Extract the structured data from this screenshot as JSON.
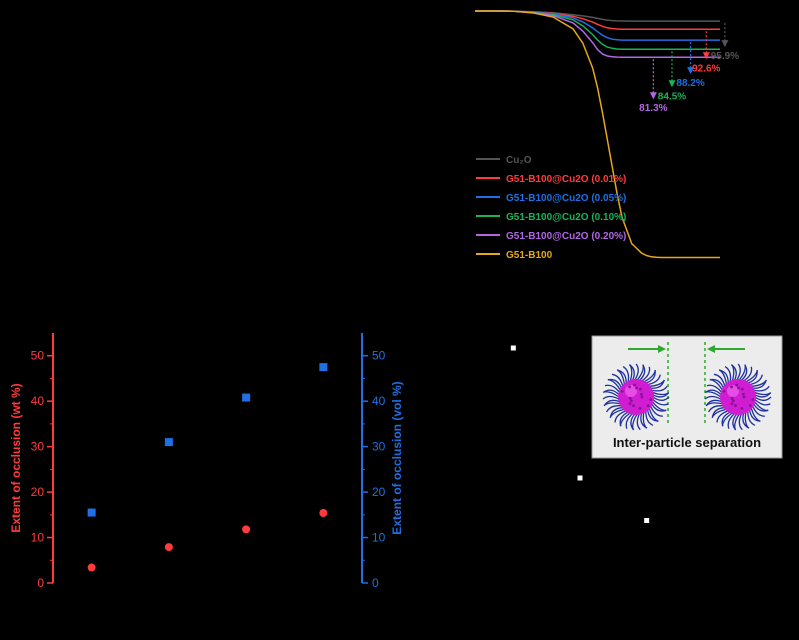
{
  "colors": {
    "background": "#000000",
    "cu2o": "#555555",
    "s001": "#ff3b3b",
    "s005": "#1f6fe5",
    "s010": "#18b35a",
    "s020": "#b366e6",
    "g51b100": "#e6a817",
    "wt_axis": "#ff3b3b",
    "vol_axis": "#1f6fe5",
    "panel_bg": "#ececec",
    "marker_white": "#ffffff",
    "arrow_green": "#2ea82e",
    "particle_core": "#d11dd1",
    "particle_hairs": "#1d2f9e"
  },
  "chart_data": [
    {
      "type": "line",
      "panel": "TGA curves",
      "x": [
        0,
        20,
        40,
        60,
        80,
        100,
        110,
        120,
        125,
        130,
        135,
        140,
        145,
        150,
        160,
        170,
        175,
        180,
        185,
        190,
        195,
        200,
        210,
        220,
        230,
        240,
        250
      ],
      "xlim": [
        0,
        250
      ],
      "ylim": [
        0,
        100
      ],
      "series": [
        {
          "name": "Cu₂O",
          "color_key": "cu2o",
          "values": [
            100,
            100,
            99.9,
            99.7,
            99.3,
            98.5,
            98.0,
            97.4,
            97.0,
            96.6,
            96.3,
            96.1,
            96.0,
            95.95,
            95.9,
            95.9,
            95.9,
            95.9,
            95.9,
            95.9,
            95.9,
            95.9,
            95.9,
            95.9,
            95.9,
            95.9,
            95.9
          ]
        },
        {
          "name": "G51-B100@Cu2O (0.01%)",
          "color_key": "s001",
          "values": [
            100,
            100,
            99.9,
            99.6,
            99.0,
            97.9,
            96.9,
            95.5,
            94.6,
            93.8,
            93.2,
            92.9,
            92.7,
            92.6,
            92.6,
            92.6,
            92.6,
            92.6,
            92.6,
            92.6,
            92.6,
            92.6,
            92.6,
            92.6,
            92.6,
            92.6,
            92.6
          ]
        },
        {
          "name": "G51-B100@Cu2O (0.05%)",
          "color_key": "s005",
          "values": [
            100,
            100,
            99.9,
            99.5,
            98.8,
            97.2,
            95.6,
            93.2,
            91.6,
            90.2,
            89.2,
            88.6,
            88.35,
            88.2,
            88.2,
            88.2,
            88.2,
            88.2,
            88.2,
            88.2,
            88.2,
            88.2,
            88.2,
            88.2,
            88.2,
            88.2,
            88.2
          ]
        },
        {
          "name": "G51-B100@Cu2O (0.10%)",
          "color_key": "s010",
          "values": [
            100,
            100,
            99.9,
            99.4,
            98.5,
            96.4,
            94.0,
            90.5,
            88.3,
            86.5,
            85.4,
            84.9,
            84.6,
            84.5,
            84.5,
            84.5,
            84.5,
            84.5,
            84.5,
            84.5,
            84.5,
            84.5,
            84.5,
            84.5,
            84.5,
            84.5,
            84.5
          ]
        },
        {
          "name": "G51-B100@Cu2O (0.20%)",
          "color_key": "s020",
          "values": [
            100,
            100,
            99.9,
            99.3,
            98.1,
            95.2,
            91.9,
            87.2,
            84.4,
            82.6,
            81.8,
            81.45,
            81.35,
            81.3,
            81.3,
            81.3,
            81.3,
            81.3,
            81.3,
            81.3,
            81.3,
            81.3,
            81.3,
            81.3,
            81.3,
            81.3,
            81.3
          ]
        },
        {
          "name": "G51-B100",
          "color_key": "g51b100",
          "values": [
            100,
            100,
            99.9,
            99.2,
            97.5,
            92.8,
            87.0,
            77.0,
            69.0,
            59.0,
            48.0,
            37.0,
            26.0,
            16.5,
            5.8,
            2.0,
            1.0,
            0.5,
            0.3,
            0.2,
            0.2,
            0.2,
            0.2,
            0.2,
            0.2,
            0.2,
            0.2
          ]
        }
      ],
      "annotations": [
        {
          "text": "95.9%",
          "series": "Cu₂O",
          "x": 255,
          "y": 95.9
        },
        {
          "text": "92.6%",
          "series": "G51-B100@Cu2O (0.01%)",
          "x": 236,
          "y": 92.6
        },
        {
          "text": "88.2%",
          "series": "G51-B100@Cu2O (0.05%)",
          "x": 220,
          "y": 88.2
        },
        {
          "text": "84.5%",
          "series": "G51-B100@Cu2O (0.10%)",
          "x": 201,
          "y": 84.5
        },
        {
          "text": "81.3%",
          "series": "G51-B100@Cu2O (0.20%)",
          "x": 182,
          "y": 81.3
        }
      ],
      "legend_position": "bottom-left",
      "grid": false
    },
    {
      "type": "scatter",
      "panel": "Extent of occlusion",
      "x": [
        1,
        2,
        3,
        4
      ],
      "xlim": [
        0.5,
        4.5
      ],
      "series": [
        {
          "name": "wt %",
          "axis": "left",
          "marker": "circle",
          "color_key": "wt_axis",
          "values": [
            3.4,
            7.9,
            11.8,
            15.4
          ]
        },
        {
          "name": "vol %",
          "axis": "right",
          "marker": "square",
          "color_key": "vol_axis",
          "values": [
            15.5,
            31.0,
            40.8,
            47.5
          ]
        }
      ],
      "ylabel_left": "Extent of occlusion (wt %)",
      "ylabel_right": "Extent of occlusion (vol %)",
      "ylim_left": [
        0,
        55
      ],
      "ylim_right": [
        0,
        55
      ],
      "yticks": [
        0,
        10,
        20,
        30,
        40,
        50
      ],
      "grid": false
    },
    {
      "type": "scatter",
      "panel": "Inter-particle separation",
      "x": [
        1,
        2,
        3
      ],
      "xlim": [
        0.5,
        3.5
      ],
      "ylim": [
        0,
        5
      ],
      "series": [
        {
          "name": "",
          "marker": "square",
          "color_key": "marker_white",
          "values": [
            4.7,
            2.1,
            1.25
          ]
        }
      ],
      "inset_caption": "Inter-particle separation"
    }
  ]
}
